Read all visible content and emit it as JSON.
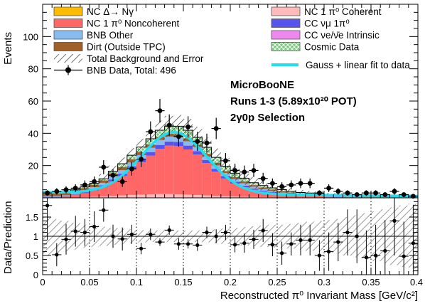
{
  "chart_data": [
    {
      "type": "stacked-histogram",
      "ylabel": "Events",
      "ylim": [
        0,
        120
      ],
      "xlim": [
        0,
        0.4
      ],
      "bin_edges": [
        0,
        0.01,
        0.02,
        0.03,
        0.04,
        0.05,
        0.06,
        0.07,
        0.08,
        0.09,
        0.1,
        0.11,
        0.12,
        0.13,
        0.14,
        0.15,
        0.16,
        0.17,
        0.18,
        0.19,
        0.2,
        0.21,
        0.22,
        0.23,
        0.24,
        0.25,
        0.26,
        0.27,
        0.28,
        0.29,
        0.3,
        0.31,
        0.32,
        0.33,
        0.34,
        0.35,
        0.36,
        0.37,
        0.38,
        0.39,
        0.4
      ],
      "y_ticks": [
        20,
        40,
        60,
        80,
        100
      ],
      "stack_order": [
        "nc_pi0_coherent",
        "nc_delta",
        "nc_1pi0_noncoherent",
        "cc_numu_1pi0",
        "cc_nue_intrinsic",
        "bnb_other",
        "dirt",
        "cosmic"
      ],
      "series": [
        {
          "key": "nc_delta",
          "name": "NC Δ→ Nγ",
          "color": "#ffbb00",
          "values": [
            0,
            0,
            0,
            0,
            0,
            0,
            0,
            0,
            0,
            0,
            0,
            0,
            0,
            0,
            0,
            0,
            0,
            0,
            0,
            0,
            0,
            0,
            0,
            0,
            0,
            0,
            0,
            0,
            0,
            0,
            0,
            0,
            0,
            0,
            0,
            0,
            0,
            0,
            0,
            0
          ]
        },
        {
          "key": "nc_pi0_coherent",
          "name": "NC 1 π⁰ Coherent",
          "color": "#ffbbbb",
          "values": [
            0,
            0,
            0,
            0.2,
            0.4,
            0.6,
            0.8,
            1.2,
            1.5,
            1.8,
            2,
            2.2,
            2.4,
            2.4,
            2.2,
            2,
            1.8,
            1.5,
            1.2,
            1,
            0.8,
            0.6,
            0.5,
            0.4,
            0.3,
            0.2,
            0.2,
            0.1,
            0.1,
            0.1,
            0,
            0,
            0,
            0,
            0,
            0,
            0,
            0,
            0,
            0
          ]
        },
        {
          "key": "nc_1pi0_noncoherent",
          "name": "NC 1 π⁰ Noncoherent",
          "color": "#ff6666",
          "values": [
            0.5,
            0.5,
            0.8,
            1.5,
            2.5,
            4,
            6,
            9,
            12,
            16,
            20,
            24,
            28,
            30,
            30,
            28,
            25,
            20,
            15,
            11,
            8,
            6,
            4.5,
            3.5,
            2.8,
            2.2,
            1.6,
            1.2,
            1,
            0.8,
            0.6,
            0.5,
            0.4,
            0.4,
            0.3,
            0.3,
            0.2,
            0.2,
            0.2,
            0.2
          ]
        },
        {
          "key": "cc_numu_1pi0",
          "name": "CC νμ 1π⁰",
          "color": "#5555ee",
          "values": [
            0.2,
            0.2,
            0.3,
            0.4,
            0.6,
            0.8,
            1,
            1.2,
            1.5,
            1.8,
            2,
            2.2,
            2.4,
            2.5,
            2.5,
            2.4,
            2.2,
            2,
            1.8,
            1.5,
            1.2,
            1,
            0.8,
            0.6,
            0.5,
            0.4,
            0.4,
            0.3,
            0.3,
            0.2,
            0.2,
            0.2,
            0.1,
            0.1,
            0.1,
            0.1,
            0.1,
            0.1,
            0.1,
            0.1
          ]
        },
        {
          "key": "cc_nue_intrinsic",
          "name": "CC νe/ν̄e Intrinsic",
          "color": "#ee88ee",
          "values": [
            0,
            0,
            0,
            0,
            0,
            0,
            0,
            0,
            0.1,
            0.1,
            0.1,
            0.1,
            0.1,
            0.1,
            0.1,
            0.1,
            0.1,
            0.1,
            0.1,
            0.1,
            0.1,
            0.1,
            0.1,
            0.1,
            0,
            0,
            0,
            0,
            0,
            0,
            0,
            0,
            0,
            0,
            0,
            0,
            0,
            0,
            0,
            0
          ]
        },
        {
          "key": "bnb_other",
          "name": "BNB Other",
          "color": "#88bbee",
          "values": [
            0.3,
            0.4,
            0.5,
            0.8,
            1,
            1.2,
            1.5,
            1.8,
            2,
            2.2,
            2.4,
            2.6,
            3,
            3,
            2.8,
            2.6,
            2.4,
            2.2,
            2,
            1.8,
            1.5,
            1.3,
            1,
            0.8,
            0.6,
            0.5,
            0.4,
            0.4,
            0.3,
            0.3,
            0.2,
            0.2,
            0.2,
            0.2,
            0.1,
            0.1,
            0.1,
            0.1,
            0.1,
            0.1
          ]
        },
        {
          "key": "dirt",
          "name": "Dirt (Outside TPC)",
          "color": "#a0602a",
          "values": [
            1.5,
            1.5,
            1.5,
            1.5,
            1.5,
            1.5,
            1.5,
            1.8,
            2,
            2,
            2,
            2,
            2,
            1.8,
            1.8,
            1.8,
            1.5,
            1.5,
            1.5,
            1.2,
            1.2,
            1.2,
            1,
            1,
            1,
            1,
            0.8,
            0.8,
            0.8,
            0.8,
            0.6,
            0.6,
            0.6,
            0.6,
            0.5,
            0.5,
            0.5,
            0.5,
            0.5,
            0.5
          ]
        },
        {
          "key": "cosmic",
          "name": "Cosmic Data",
          "color": "#77cc77",
          "values": [
            0.5,
            0.5,
            0.5,
            0.5,
            0.8,
            1,
            1,
            1.5,
            2,
            2.5,
            3,
            3.5,
            4,
            4.5,
            5,
            5,
            4.5,
            4,
            3.5,
            3,
            2.5,
            2,
            1.5,
            1.2,
            1,
            0.8,
            0.6,
            0.5,
            0.5,
            0.5,
            0.4,
            0.4,
            0.4,
            0.3,
            0.3,
            0.3,
            0.3,
            0.3,
            0.2,
            0.2
          ]
        }
      ],
      "total_error": [
        0.8,
        0.8,
        1,
        1.5,
        2,
        2.5,
        3,
        3.5,
        4,
        4.5,
        5,
        5.5,
        6,
        6.5,
        7,
        7,
        6.5,
        6,
        5.5,
        5,
        4.5,
        4,
        3.5,
        3,
        2.5,
        2,
        1.8,
        1.6,
        1.4,
        1.2,
        1,
        1,
        1,
        0.9,
        0.8,
        0.8,
        0.8,
        0.7,
        0.7,
        0.7
      ],
      "data": {
        "name": "BNB Data, Total: 496",
        "x": [
          0.005,
          0.015,
          0.025,
          0.035,
          0.045,
          0.055,
          0.065,
          0.075,
          0.085,
          0.095,
          0.105,
          0.115,
          0.125,
          0.135,
          0.145,
          0.155,
          0.165,
          0.175,
          0.185,
          0.195,
          0.205,
          0.215,
          0.225,
          0.235,
          0.245,
          0.255,
          0.265,
          0.275,
          0.285,
          0.295,
          0.305,
          0.315,
          0.325,
          0.335,
          0.345,
          0.355,
          0.365,
          0.375,
          0.385,
          0.395
        ],
        "y": [
          3,
          4,
          5,
          6,
          8,
          10,
          19,
          14,
          10,
          18,
          24,
          41,
          54,
          45,
          38,
          44,
          35,
          34,
          43,
          23,
          17,
          16,
          17,
          12,
          9,
          7,
          8,
          9,
          9,
          3,
          6,
          4,
          3,
          2,
          3,
          3,
          2,
          4,
          2,
          1
        ],
        "yerr": [
          1.7,
          2,
          2.2,
          2.4,
          2.8,
          3.2,
          4.4,
          3.7,
          3.2,
          4.2,
          4.9,
          6.4,
          7.3,
          6.7,
          6.2,
          6.6,
          5.9,
          5.8,
          6.6,
          4.8,
          4.1,
          4,
          4.1,
          3.5,
          3,
          2.6,
          2.8,
          3,
          3,
          1.7,
          2.4,
          2,
          1.7,
          1.4,
          1.7,
          1.7,
          1.4,
          2,
          1.4,
          1
        ]
      },
      "fit": {
        "name": "Gauss + linear fit to data",
        "color": "#22ddee",
        "amplitude": 38,
        "mean": 0.14,
        "sigma": 0.035,
        "intercept": 3.5,
        "slope": -6
      },
      "annotations": [
        "MicroBooNE",
        "Runs 1-3  (5.89x10²⁰ POT)",
        "2γ0p Selection"
      ],
      "legend_extra": {
        "error": "Total Background and Error",
        "data": "BNB Data, Total: 496"
      }
    },
    {
      "type": "ratio",
      "xlabel": "Reconstructed π⁰ Invariant Mass [GeV/c²]",
      "ylabel": "Data/Prediction",
      "ylim": [
        0,
        2
      ],
      "xlim": [
        0,
        0.4
      ],
      "y_ticks": [
        0,
        0.5,
        1,
        1.5
      ],
      "y_tick_labels": [
        "0",
        "0.5",
        "1",
        "1.5"
      ],
      "x_ticks": [
        0,
        0.05,
        0.1,
        0.15,
        0.2,
        0.25,
        0.3,
        0.35,
        0.4
      ],
      "x_tick_labels": [
        "0",
        "0.05",
        "0.1",
        "0.15",
        "0.2",
        "0.25",
        "0.3",
        "0.35",
        "0.4"
      ],
      "x": [
        0.005,
        0.015,
        0.025,
        0.035,
        0.045,
        0.055,
        0.065,
        0.075,
        0.085,
        0.095,
        0.105,
        0.115,
        0.125,
        0.135,
        0.145,
        0.155,
        0.165,
        0.175,
        0.185,
        0.195,
        0.205,
        0.215,
        0.225,
        0.235,
        0.245,
        0.255,
        0.265,
        0.275,
        0.285,
        0.295,
        0.305,
        0.315,
        0.325,
        0.335,
        0.345,
        0.355,
        0.365,
        0.375,
        0.385,
        0.395
      ],
      "ratio": [
        1.8,
        0.52,
        0.92,
        1.13,
        1.1,
        1.25,
        1.68,
        1.0,
        0.93,
        1.05,
        0.68,
        1.05,
        0.85,
        1.16,
        0.8,
        0.8,
        0.77,
        1.1,
        1.0,
        1.1,
        0.78,
        0.82,
        0.92,
        1.15,
        0.78,
        0.56,
        0.8,
        0.9,
        0.9,
        0.5,
        0.6,
        0.85,
        1.1,
        1.0,
        0.45,
        0.5,
        0.62,
        1.4,
        0.48,
        0.82
      ],
      "ratio_err": [
        0.9,
        0.3,
        0.4,
        0.4,
        0.35,
        0.4,
        0.3,
        0.3,
        0.3,
        0.25,
        0.15,
        0.15,
        0.1,
        0.12,
        0.15,
        0.12,
        0.15,
        0.15,
        0.18,
        0.2,
        0.2,
        0.25,
        0.25,
        0.3,
        0.3,
        0.3,
        0.3,
        0.4,
        0.4,
        0.4,
        0.5,
        0.5,
        0.6,
        0.7,
        0.7,
        0.8,
        0.8,
        0.9,
        0.9,
        1.0
      ],
      "band_rel": [
        0.5,
        0.45,
        0.4,
        0.35,
        0.3,
        0.28,
        0.25,
        0.22,
        0.2,
        0.18,
        0.16,
        0.15,
        0.15,
        0.15,
        0.15,
        0.15,
        0.15,
        0.16,
        0.18,
        0.2,
        0.22,
        0.24,
        0.26,
        0.28,
        0.3,
        0.3,
        0.32,
        0.35,
        0.38,
        0.4,
        0.42,
        0.45,
        0.5,
        0.55,
        0.6,
        0.65,
        0.7,
        0.75,
        0.8,
        0.85
      ]
    }
  ]
}
